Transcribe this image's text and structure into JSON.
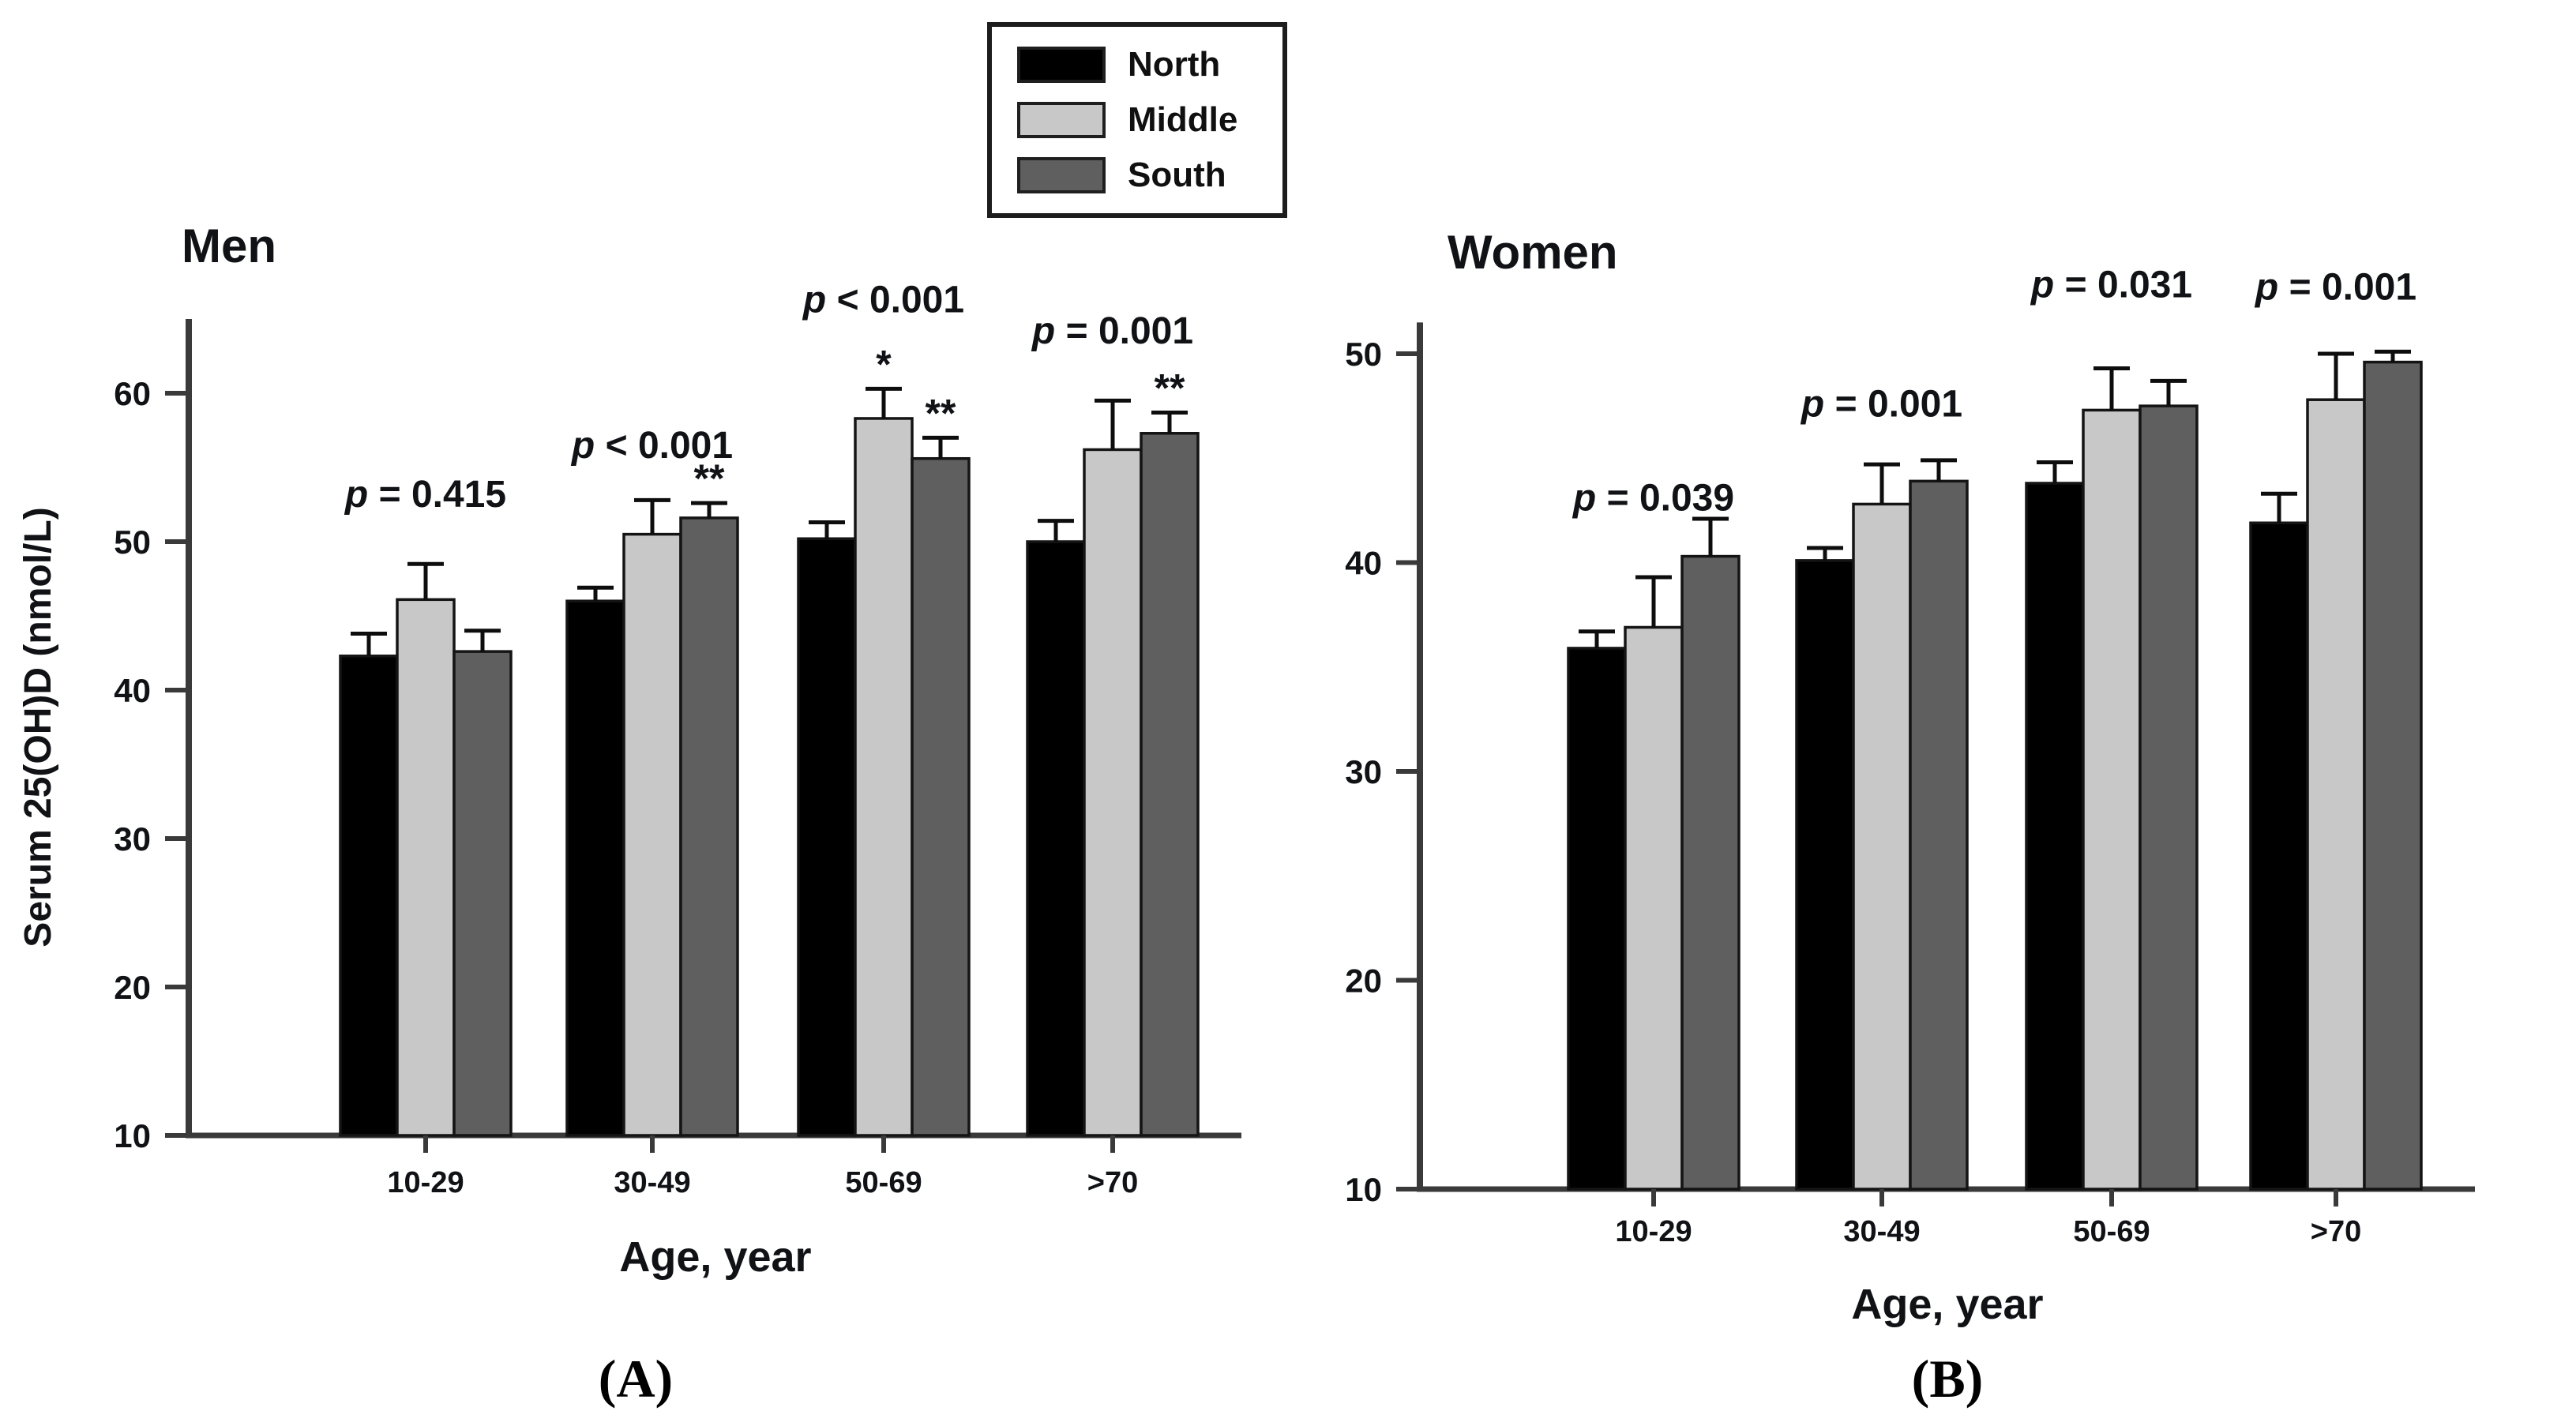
{
  "figure": {
    "background": "#ffffff",
    "text_color": "#101216",
    "axis_color": "#3a3a3a"
  },
  "legend": {
    "position": "top-center",
    "items": [
      {
        "label": "North",
        "color": "#000000"
      },
      {
        "label": "Middle",
        "color": "#c8c8c8"
      },
      {
        "label": "South",
        "color": "#5f5f5f"
      }
    ]
  },
  "panel_labels": [
    {
      "label": "(A)"
    },
    {
      "label": "(B)"
    }
  ],
  "chart_data": [
    {
      "type": "bar",
      "panel": "A",
      "title": "Men",
      "xlabel": "Age, year",
      "ylabel": "Serum 25(OH)D (nmol/L)",
      "categories": [
        "10-29",
        "30-49",
        "50-69",
        ">70"
      ],
      "ylim": [
        10,
        65
      ],
      "yticks": [
        10,
        20,
        30,
        40,
        50,
        60
      ],
      "grid": false,
      "legend_position": "shared-top-center",
      "series": [
        {
          "name": "North",
          "color": "#000000",
          "values": [
            42.3,
            46.0,
            50.2,
            50.0
          ],
          "errors": [
            1.5,
            0.9,
            1.1,
            1.4
          ],
          "sig": [
            "",
            "",
            "",
            ""
          ]
        },
        {
          "name": "Middle",
          "color": "#c8c8c8",
          "values": [
            46.1,
            50.5,
            58.3,
            56.2
          ],
          "errors": [
            2.4,
            2.3,
            2.0,
            3.3
          ],
          "sig": [
            "",
            "",
            "*",
            ""
          ]
        },
        {
          "name": "South",
          "color": "#5f5f5f",
          "values": [
            42.6,
            51.6,
            55.6,
            57.3
          ],
          "errors": [
            1.4,
            1.0,
            1.4,
            1.4
          ],
          "sig": [
            "",
            "**",
            "**",
            "**"
          ]
        }
      ],
      "p_values": [
        "p = 0.415",
        "p < 0.001",
        "p < 0.001",
        "p = 0.001"
      ],
      "p_label_y": [
        53.2,
        56.5,
        66.3,
        64.2
      ]
    },
    {
      "type": "bar",
      "panel": "B",
      "title": "Women",
      "xlabel": "Age, year",
      "ylabel": "",
      "categories": [
        "10-29",
        "30-49",
        "50-69",
        ">70"
      ],
      "ylim": [
        10,
        51.5
      ],
      "yticks": [
        10,
        20,
        30,
        40,
        50
      ],
      "grid": false,
      "legend_position": "shared-top-center",
      "series": [
        {
          "name": "North",
          "color": "#000000",
          "values": [
            35.9,
            40.1,
            43.8,
            41.9
          ],
          "errors": [
            0.8,
            0.6,
            1.0,
            1.4
          ],
          "sig": [
            "",
            "",
            "",
            ""
          ]
        },
        {
          "name": "Middle",
          "color": "#c8c8c8",
          "values": [
            36.9,
            42.8,
            47.3,
            47.8
          ],
          "errors": [
            2.4,
            1.9,
            2.0,
            2.2
          ],
          "sig": [
            "",
            "",
            "",
            ""
          ]
        },
        {
          "name": "South",
          "color": "#5f5f5f",
          "values": [
            40.3,
            43.9,
            47.5,
            49.6
          ],
          "errors": [
            1.8,
            1.0,
            1.2,
            0.5
          ],
          "sig": [
            "",
            "",
            "",
            ""
          ]
        }
      ],
      "p_values": [
        "p = 0.039",
        "p = 0.001",
        "p = 0.031",
        "p = 0.001"
      ],
      "p_label_y": [
        43.1,
        47.6,
        53.3,
        53.2
      ]
    }
  ]
}
